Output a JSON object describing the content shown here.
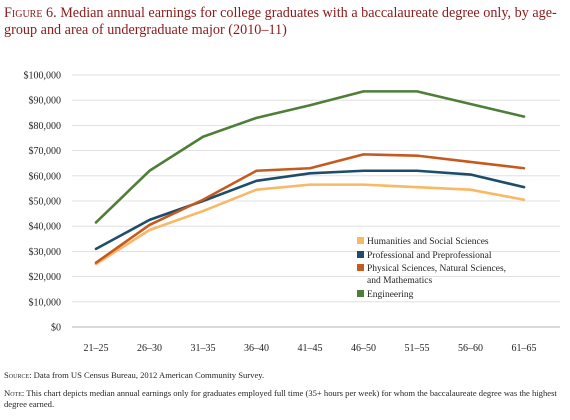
{
  "figure": {
    "label": "Figure 6.",
    "title": "Median annual earnings for college graduates with a baccalaureate degree only, by age-group and area of undergraduate major (2010–11)"
  },
  "chart_data": {
    "type": "line",
    "categories": [
      "21–25",
      "26–30",
      "31–35",
      "36–40",
      "41–45",
      "46–50",
      "51–55",
      "56–60",
      "61–65"
    ],
    "y_ticks": [
      "$0",
      "$10,000",
      "$20,000",
      "$30,000",
      "$40,000",
      "$50,000",
      "$60,000",
      "$70,000",
      "$80,000",
      "$90,000",
      "$100,000"
    ],
    "ylim": [
      0,
      100000
    ],
    "grid": "horizontal",
    "legend_position": "right",
    "series": [
      {
        "name": "Humanities and Social Sciences",
        "color": "#f9b865",
        "values": [
          25000,
          38500,
          46000,
          54500,
          56500,
          56500,
          55500,
          54500,
          50500
        ]
      },
      {
        "name": "Professional and Preprofessional",
        "color": "#1e4d6b",
        "values": [
          31000,
          42500,
          50000,
          58000,
          61000,
          62000,
          62000,
          60500,
          55500
        ]
      },
      {
        "name": "Physical Sciences, Natural Sciences, and Mathematics",
        "color": "#c65a1e",
        "values": [
          25500,
          40500,
          50500,
          62000,
          63000,
          68500,
          68000,
          65500,
          63000
        ]
      },
      {
        "name": "Engineering",
        "color": "#4d7f38",
        "values": [
          41500,
          62000,
          75500,
          83000,
          88000,
          93500,
          93500,
          88500,
          83500
        ]
      }
    ],
    "legend_lines": [
      [
        "Humanities and Social Sciences"
      ],
      [
        "Professional and Preprofessional"
      ],
      [
        "Physical Sciences, Natural Sciences,",
        "and Mathematics"
      ],
      [
        "Engineering"
      ]
    ]
  },
  "source": {
    "label": "Source:",
    "text": "Data from US Census Bureau, 2012 American Community Survey."
  },
  "note": {
    "label": "Note:",
    "text": "This chart depicts median annual earnings only for graduates employed full time (35+ hours per week) for whom the baccalaureate degree was the highest degree earned."
  }
}
